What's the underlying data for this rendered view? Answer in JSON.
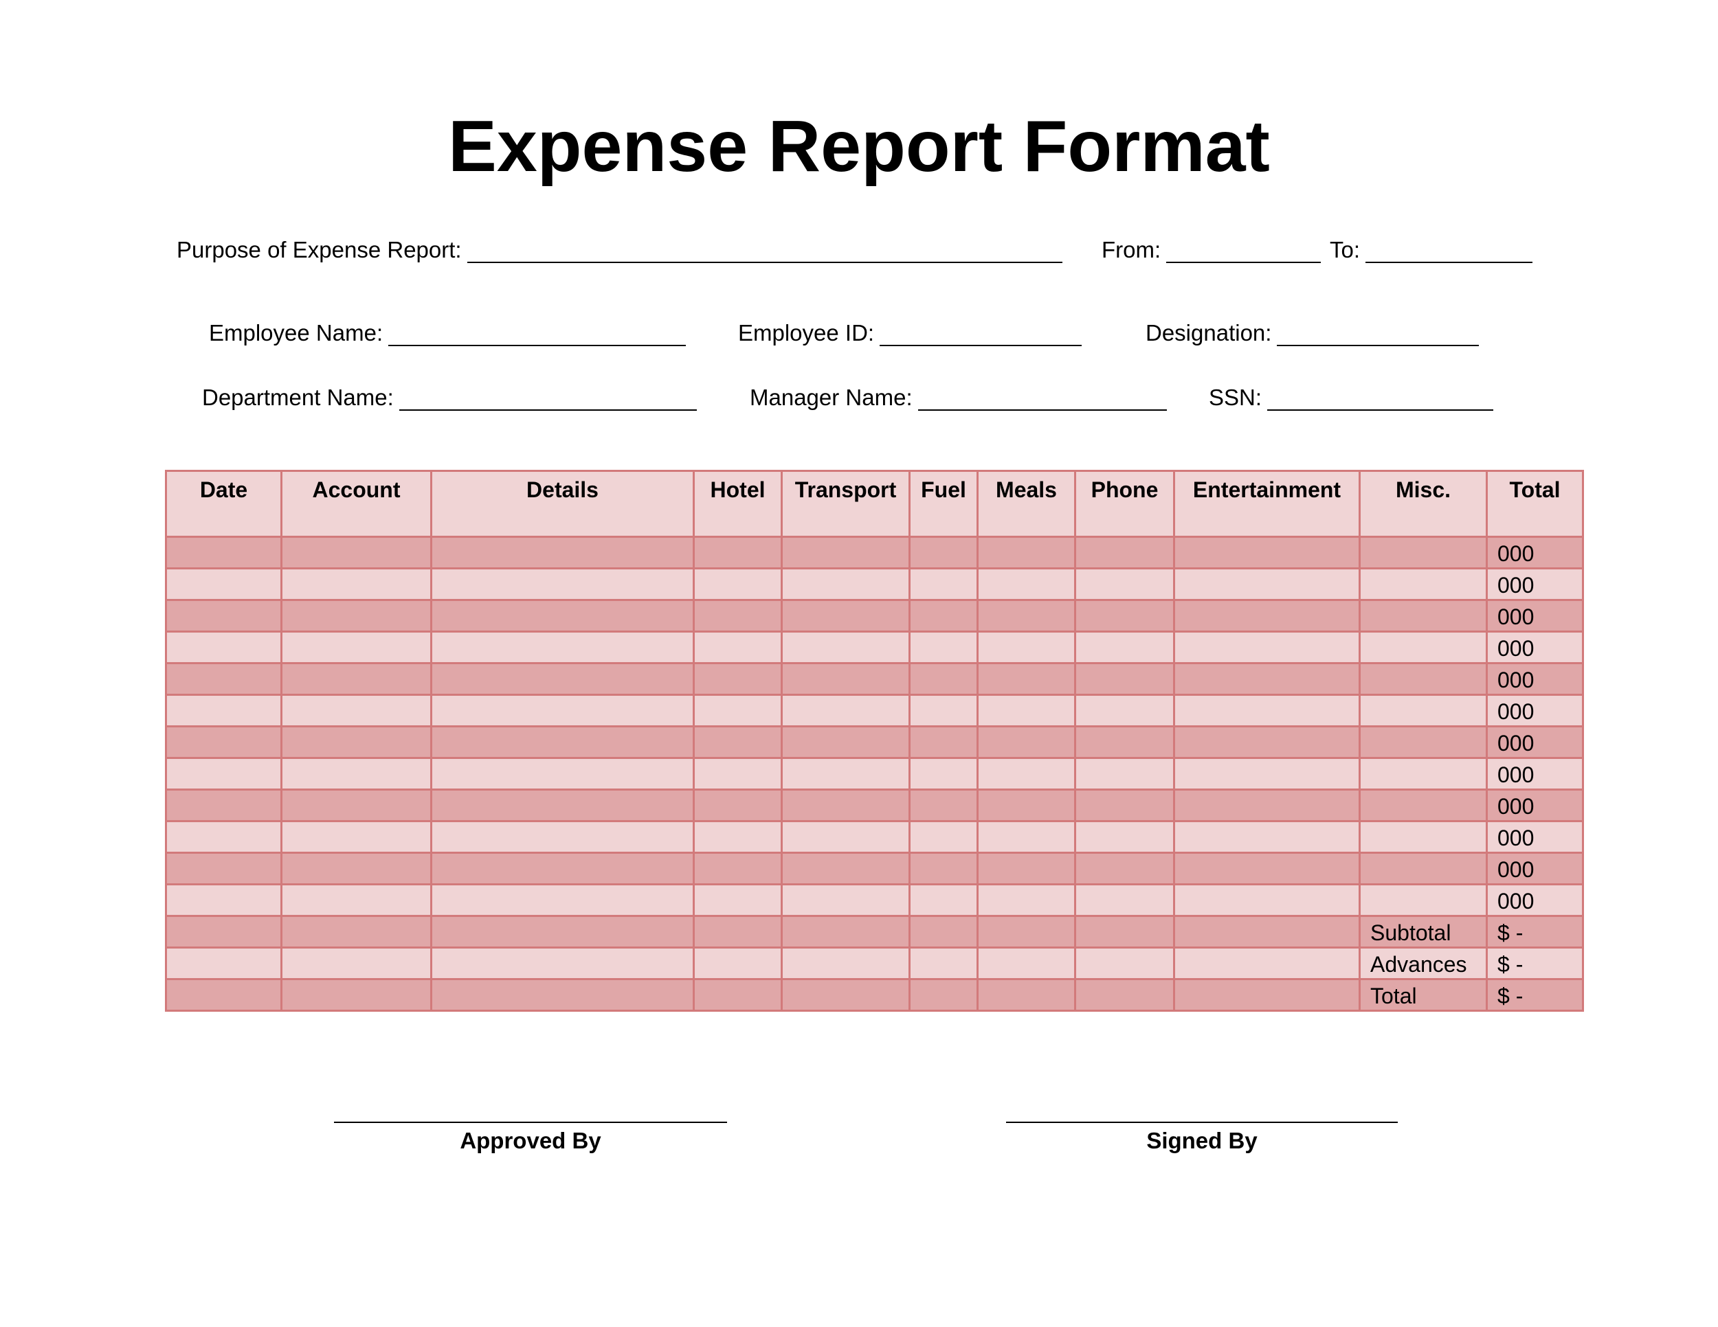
{
  "title": "Expense Report Format",
  "fields": {
    "purpose": "Purpose of Expense Report:",
    "from": "From:",
    "to": "To:",
    "employee_name": "Employee Name:",
    "employee_id": "Employee ID:",
    "designation": "Designation:",
    "department_name": "Department Name:",
    "manager_name": "Manager Name:",
    "ssn": "SSN:"
  },
  "table": {
    "headers": [
      "Date",
      "Account",
      "Details",
      "Hotel",
      "Transport",
      "Fuel",
      "Meals",
      "Phone",
      "Entertainment",
      "Misc.",
      "Total"
    ],
    "row_totals": [
      "000",
      "000",
      "000",
      "000",
      "000",
      "000",
      "000",
      "000",
      "000",
      "000",
      "000",
      "000"
    ],
    "summary": [
      {
        "label": "Subtotal",
        "value": "$ -"
      },
      {
        "label": "Advances",
        "value": "$ -"
      },
      {
        "label": "Total",
        "value": "$ -"
      }
    ]
  },
  "signatures": {
    "approved": "Approved By",
    "signed": "Signed By"
  },
  "colors": {
    "dark_row": "#e0a7a8",
    "light_row": "#f0d4d5",
    "border": "#d27a7b"
  }
}
